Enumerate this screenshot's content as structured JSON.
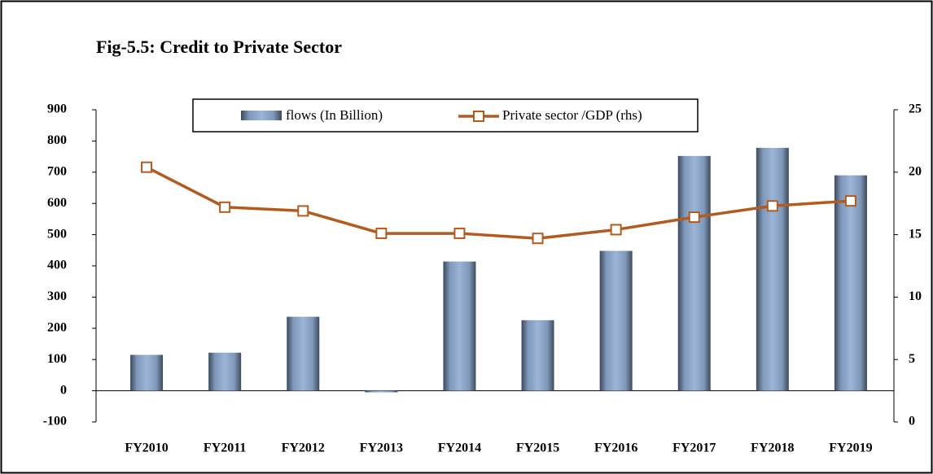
{
  "chart_data": {
    "type": "bar_line",
    "title": "Fig-5.5: Credit to Private Sector",
    "categories": [
      "FY2010",
      "FY2011",
      "FY2012",
      "FY2013",
      "FY2014",
      "FY2015",
      "FY2016",
      "FY2017",
      "FY2018",
      "FY2019"
    ],
    "series": [
      {
        "name": "flows (In Billion)",
        "type": "bar",
        "color": "#8fa9cc",
        "values": [
          115,
          122,
          237,
          -5,
          414,
          226,
          448,
          752,
          778,
          690
        ]
      },
      {
        "name": "Private sector /GDP (rhs)",
        "type": "line",
        "axis": "y2",
        "color": "#b35a1f",
        "values": [
          20.4,
          17.2,
          16.9,
          15.1,
          15.1,
          14.7,
          15.4,
          16.4,
          17.3,
          17.7
        ]
      }
    ],
    "ylim": [
      -100,
      900
    ],
    "yticks": [
      -100,
      0,
      100,
      200,
      300,
      400,
      500,
      600,
      700,
      800,
      900
    ],
    "y2lim": [
      0,
      25
    ],
    "y2ticks": [
      0,
      5,
      10,
      15,
      20,
      25
    ],
    "legend": "top"
  }
}
